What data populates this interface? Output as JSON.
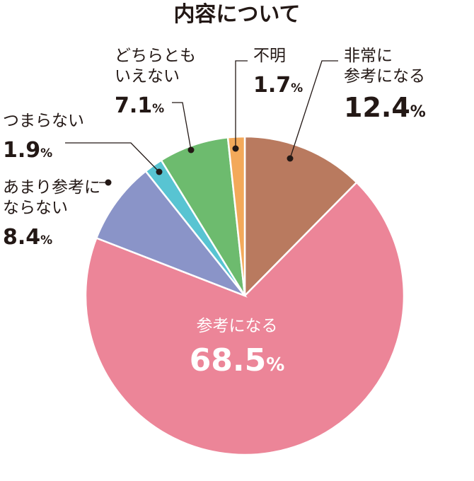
{
  "chart_data": {
    "type": "pie",
    "title": "内容について",
    "slices": [
      {
        "label": [
          "非常に",
          "参考になる"
        ],
        "value": 12.4,
        "display": "12.4",
        "unit": "%",
        "color": "#b97a5f"
      },
      {
        "label": [
          "参考になる"
        ],
        "value": 68.5,
        "display": "68.5",
        "unit": "%",
        "color": "#ec8598"
      },
      {
        "label": [
          "あまり参考に",
          "ならない"
        ],
        "value": 8.4,
        "display": "8.4",
        "unit": "%",
        "color": "#8a94c8"
      },
      {
        "label": [
          "つまらない"
        ],
        "value": 1.9,
        "display": "1.9",
        "unit": "%",
        "color": "#58c4d2"
      },
      {
        "label": [
          "どちらとも",
          "いえない"
        ],
        "value": 7.1,
        "display": "7.1",
        "unit": "%",
        "color": "#6dbb6e"
      },
      {
        "label": [
          "不明"
        ],
        "value": 1.7,
        "display": "1.7",
        "unit": "%",
        "color": "#f3a95a"
      }
    ]
  }
}
